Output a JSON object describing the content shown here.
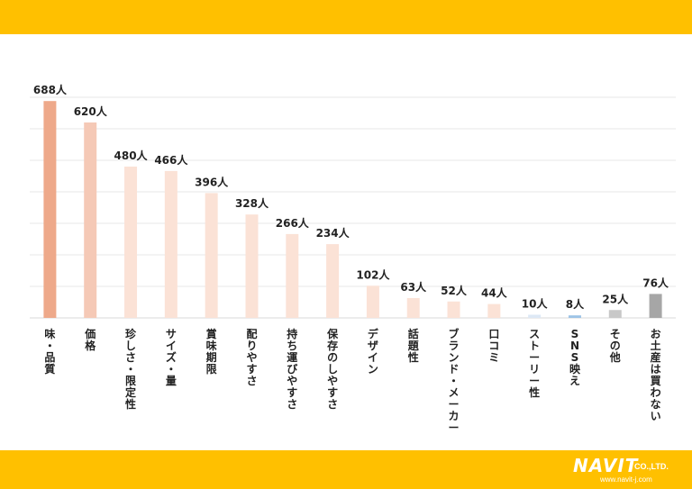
{
  "brand": {
    "name": "NAVIT",
    "suffix": "CO.,LTD.",
    "url": "www.navit-j.com"
  },
  "chart_data": {
    "type": "bar",
    "ylim": [
      0,
      700
    ],
    "grid": true,
    "unit": "人",
    "categories": [
      "味・品質",
      "価格",
      "珍しさ・限定性",
      "サイズ・量",
      "賞味期限",
      "配りやすさ",
      "持ち運びやすさ",
      "保存のしやすさ",
      "デザイン",
      "話題性",
      "ブランド・メーカー",
      "口コミ",
      "ストーリー性",
      "SNS映え",
      "その他",
      "お土産は買わない"
    ],
    "values": [
      688,
      620,
      480,
      466,
      396,
      328,
      266,
      234,
      102,
      63,
      52,
      44,
      10,
      8,
      25,
      76
    ],
    "data_labels": [
      "688人",
      "620人",
      "480人",
      "466人",
      "396人",
      "328人",
      "266人",
      "234人",
      "102人",
      "63人",
      "52人",
      "44人",
      "10人",
      "8人",
      "25人",
      "76人"
    ],
    "colors": [
      "#eea98a",
      "#f5c9b6",
      "#fbe2d6",
      "#fbe2d6",
      "#fbe2d6",
      "#fbe2d6",
      "#fbe2d6",
      "#fbe2d6",
      "#fbe2d6",
      "#fbe2d6",
      "#fbe2d6",
      "#fbe2d6",
      "#dde8f5",
      "#9dc3e6",
      "#c8c8c8",
      "#a6a6a6"
    ]
  }
}
